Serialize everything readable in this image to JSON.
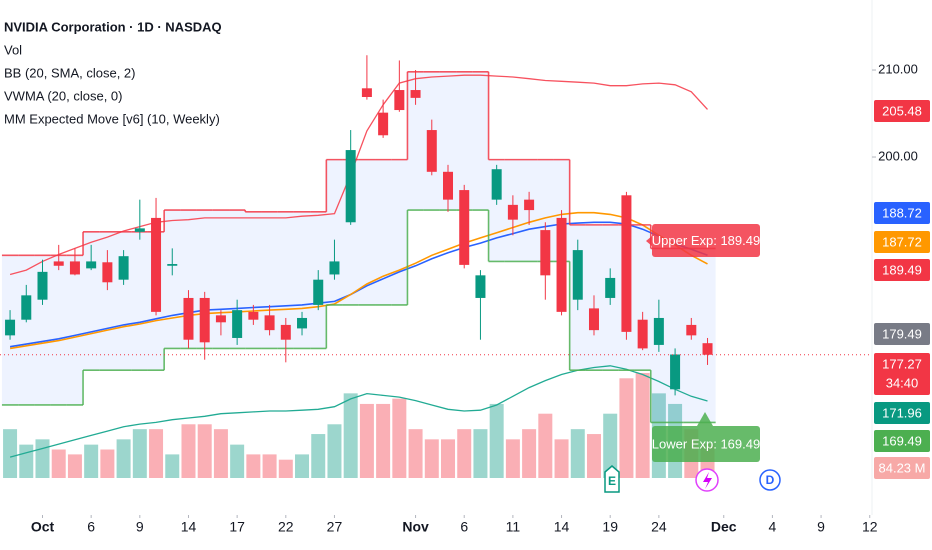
{
  "chart_data": {
    "type": "candlestick",
    "title": "NVIDIA Corporation · 1D · NASDAQ",
    "indicators": [
      "Vol",
      "BB (20, SMA, close, 2)",
      "VWMA (20, close, 0)",
      "MM Expected Move [v6] (10, Weekly)"
    ],
    "open": [
      179.5,
      181.3,
      183.6,
      188.0,
      188.0,
      187.2,
      187.9,
      185.9,
      191.4,
      193.0,
      187.5,
      183.8,
      183.8,
      181.8,
      179.2,
      182.2,
      181.8,
      180.7,
      180.3,
      183.0,
      186.5,
      192.5,
      207.9,
      205.1,
      207.7,
      207.7,
      203.1,
      198.3,
      196.2,
      183.8,
      195.1,
      194.5,
      195.1,
      191.6,
      193.0,
      183.6,
      182.6,
      183.8,
      195.6,
      181.3,
      178.4,
      173.3,
      180.7,
      178.6
    ],
    "high": [
      182.4,
      185.3,
      188.2,
      189.9,
      189.5,
      189.9,
      189.3,
      189.3,
      195.1,
      195.3,
      189.5,
      184.7,
      184.5,
      182.4,
      183.6,
      183.0,
      183.0,
      181.5,
      182.2,
      187.0,
      190.5,
      203.1,
      211.7,
      206.6,
      211.1,
      210.0,
      204.3,
      199.1,
      196.8,
      187.0,
      199.1,
      195.6,
      196.0,
      192.5,
      193.9,
      190.5,
      184.1,
      187.2,
      196.0,
      182.2,
      183.6,
      178.0,
      181.5,
      179.2
    ],
    "low": [
      179.0,
      181.0,
      183.0,
      187.0,
      186.4,
      187.0,
      184.7,
      185.3,
      190.5,
      181.8,
      186.4,
      178.0,
      176.7,
      179.5,
      178.4,
      180.7,
      179.5,
      176.4,
      179.5,
      182.4,
      185.9,
      192.2,
      206.6,
      202.2,
      205.2,
      206.0,
      197.9,
      193.7,
      187.2,
      179.0,
      194.5,
      191.0,
      192.2,
      183.6,
      181.8,
      182.4,
      179.5,
      183.0,
      179.0,
      177.8,
      177.6,
      172.6,
      179.0,
      176.1
    ],
    "close": [
      181.3,
      184.1,
      186.8,
      187.5,
      186.5,
      188.0,
      185.6,
      188.6,
      191.8,
      182.2,
      187.7,
      179.0,
      178.7,
      181.0,
      182.4,
      181.3,
      180.1,
      179.0,
      181.5,
      185.9,
      188.0,
      200.8,
      206.9,
      202.5,
      205.4,
      206.8,
      198.3,
      195.1,
      187.6,
      186.4,
      198.6,
      192.8,
      193.9,
      186.4,
      182.2,
      189.3,
      180.1,
      186.1,
      179.9,
      178.0,
      181.5,
      177.3,
      179.5,
      177.27
    ],
    "volume": [
      120,
      82,
      95,
      70,
      58,
      82,
      70,
      95,
      120,
      120,
      58,
      132,
      132,
      120,
      82,
      58,
      58,
      45,
      58,
      108,
      132,
      208,
      182,
      182,
      195,
      120,
      95,
      95,
      120,
      120,
      182,
      95,
      120,
      158,
      95,
      120,
      108,
      158,
      245,
      258,
      208,
      182,
      120,
      84.23
    ],
    "up_color": "#089981",
    "down_color": "#f23645",
    "series": [
      {
        "style": "band",
        "color": "#f7525f",
        "values": [
          186.5,
          187,
          188,
          188.8,
          189.5,
          190.2,
          190.8,
          191.5,
          192,
          192.5,
          192.7,
          192.8,
          193,
          193,
          193,
          193,
          193,
          193,
          193.2,
          193.3,
          193.5,
          198,
          203,
          206,
          208.5,
          209,
          209.2,
          209.3,
          209.4,
          209.4,
          209.3,
          209.2,
          209,
          208.8,
          208.7,
          208.6,
          208.5,
          208.2,
          208.2,
          208.4,
          208.5,
          208.3,
          207.5,
          205.48
        ]
      },
      {
        "style": "band",
        "color": "#22ab94",
        "values": [
          165.5,
          166,
          166.5,
          167,
          167.5,
          168,
          168.5,
          169,
          169.3,
          169.5,
          169.8,
          170,
          170.2,
          170.5,
          170.6,
          170.7,
          170.8,
          170.8,
          170.9,
          171,
          171.3,
          172.2,
          172.8,
          172.6,
          172.4,
          172,
          171.5,
          171,
          170.8,
          170.9,
          171.5,
          172.5,
          173.5,
          174.3,
          175,
          175.5,
          175.8,
          176,
          175.6,
          175,
          174.2,
          173.3,
          172.5,
          171.96
        ]
      },
      {
        "style": "line",
        "color": "#2962ff",
        "values": [
          178.2,
          178.5,
          178.8,
          179.1,
          179.5,
          179.9,
          180.3,
          180.7,
          181,
          181.4,
          181.8,
          182.1,
          182.4,
          182.5,
          182.6,
          182.7,
          182.8,
          182.9,
          183,
          183.2,
          183.4,
          184.2,
          185.2,
          186,
          186.8,
          187.5,
          188.3,
          189,
          189.6,
          190.1,
          190.7,
          191.2,
          191.7,
          192,
          192.3,
          192.4,
          192.5,
          192.5,
          192.3,
          191.7,
          190.9,
          190,
          189.4,
          188.72
        ]
      },
      {
        "style": "line",
        "color": "#ff9800",
        "values": [
          178,
          178.3,
          178.6,
          178.9,
          179.3,
          179.7,
          180.1,
          180.5,
          180.8,
          181.2,
          181.5,
          181.8,
          182,
          182.1,
          182.2,
          182.3,
          182.4,
          182.5,
          182.6,
          182.8,
          183.1,
          184.2,
          185.4,
          186.3,
          187,
          187.8,
          188.7,
          189.4,
          190.1,
          190.7,
          191.3,
          191.9,
          192.5,
          193,
          193.4,
          193.6,
          193.6,
          193.4,
          193,
          192.2,
          191,
          189.9,
          188.7,
          187.72
        ]
      },
      {
        "style": "step",
        "color": "#f23645",
        "values": [
          188.7,
          188.7,
          188.7,
          188.7,
          188.7,
          191.4,
          191.4,
          191.4,
          191.4,
          191.4,
          193.9,
          193.9,
          193.9,
          193.9,
          193.9,
          193.7,
          193.7,
          193.7,
          193.7,
          193.7,
          199.7,
          199.7,
          199.7,
          199.7,
          199.7,
          209.8,
          209.8,
          209.8,
          209.8,
          209.8,
          199.7,
          199.7,
          199.7,
          199.7,
          199.7,
          192.2,
          192.2,
          192.2,
          192.2,
          192.2,
          189.49,
          189.49,
          189.49,
          189.49
        ]
      },
      {
        "style": "step",
        "color": "#4caf50",
        "values": [
          171.5,
          171.5,
          171.5,
          171.5,
          171.5,
          175.5,
          175.5,
          175.5,
          175.5,
          175.5,
          178,
          178,
          178,
          178,
          178,
          178,
          178,
          178,
          178,
          178,
          183,
          183,
          183,
          183,
          183,
          193.9,
          193.9,
          193.9,
          193.9,
          193.9,
          188,
          188,
          188,
          188,
          188,
          175.5,
          175.5,
          175.5,
          175.5,
          175.5,
          169.49,
          169.49,
          169.49,
          169.49
        ]
      }
    ],
    "xlim": [
      -0.62,
      53.14
    ],
    "ylim": [
      158.85,
      218.05
    ],
    "xticks": [
      {
        "value": 2,
        "label": "Oct"
      },
      {
        "value": 5,
        "label": "6"
      },
      {
        "value": 8,
        "label": "9"
      },
      {
        "value": 11,
        "label": "14"
      },
      {
        "value": 14,
        "label": "17"
      },
      {
        "value": 17,
        "label": "22"
      },
      {
        "value": 20,
        "label": "27"
      },
      {
        "value": 25,
        "label": "Nov"
      },
      {
        "value": 28,
        "label": "6"
      },
      {
        "value": 31,
        "label": "11"
      },
      {
        "value": 34,
        "label": "14"
      },
      {
        "value": 37,
        "label": "19"
      },
      {
        "value": 40,
        "label": "24"
      },
      {
        "value": 44,
        "label": "Dec"
      },
      {
        "value": 47,
        "label": "4"
      },
      {
        "value": 50,
        "label": "9"
      },
      {
        "value": 53,
        "label": "12"
      }
    ],
    "yticks": [
      {
        "value": 210,
        "label": "210.00"
      },
      {
        "value": 200,
        "label": "200.00"
      }
    ],
    "price_tags": [
      {
        "value": 205.48,
        "color": "#f23645"
      },
      {
        "value": 188.72,
        "color": "#2962ff"
      },
      {
        "value": 187.72,
        "color": "#ff9800"
      },
      {
        "value": 189.49,
        "color": "#f23645"
      },
      {
        "value": 179.49,
        "color": "#787b86"
      },
      {
        "value": 177.27,
        "color": "#f23645"
      },
      {
        "value": 171.96,
        "color": "#089981"
      },
      {
        "value": 169.49,
        "color": "#4caf50"
      },
      {
        "value": 84.23,
        "label": "84.23 M",
        "color": "#f7a9a7"
      }
    ],
    "countdown": "34:40",
    "annotations": [
      {
        "text": "Upper Exp: 189.49",
        "color": "#f23645"
      },
      {
        "text": "Lower Exp: 169.49",
        "color": "#4caf50"
      }
    ],
    "markers": [
      {
        "text": "E",
        "color": "#089981"
      },
      {
        "text": "D",
        "color": "#2962ff"
      }
    ]
  }
}
